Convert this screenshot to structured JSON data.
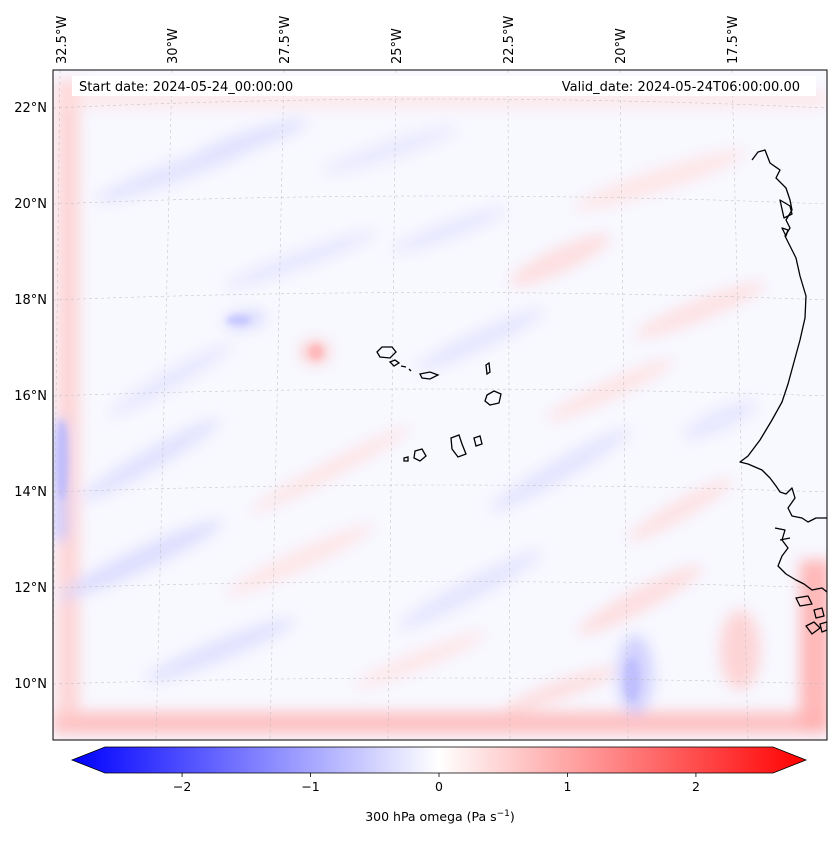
{
  "map": {
    "start_label": "Start date: 2024-05-24_00:00:00",
    "valid_label": "Valid_date: 2024-05-24T06:00:00.00",
    "lon_labels": [
      "32.5°W",
      "30°W",
      "27.5°W",
      "25°W",
      "22.5°W",
      "20°W",
      "17.5°W"
    ],
    "lat_labels": [
      "22°N",
      "20°N",
      "18°N",
      "16°N",
      "14°N",
      "12°N",
      "10°N"
    ],
    "gridlines": true,
    "colormap": "bwr"
  },
  "colorbar": {
    "label_prefix": "300 hPa omega (Pa s",
    "label_exp": "−1",
    "label_suffix": ")",
    "ticks": [
      "−2",
      "−1",
      "0",
      "1",
      "2"
    ],
    "tick_values": [
      -2,
      -1,
      0,
      1,
      2
    ],
    "vmin": -2.6,
    "vmax": 2.6,
    "extend": "both",
    "colors": {
      "min": "#0000ff",
      "mid": "#ffffff",
      "max": "#ff0000"
    }
  }
}
